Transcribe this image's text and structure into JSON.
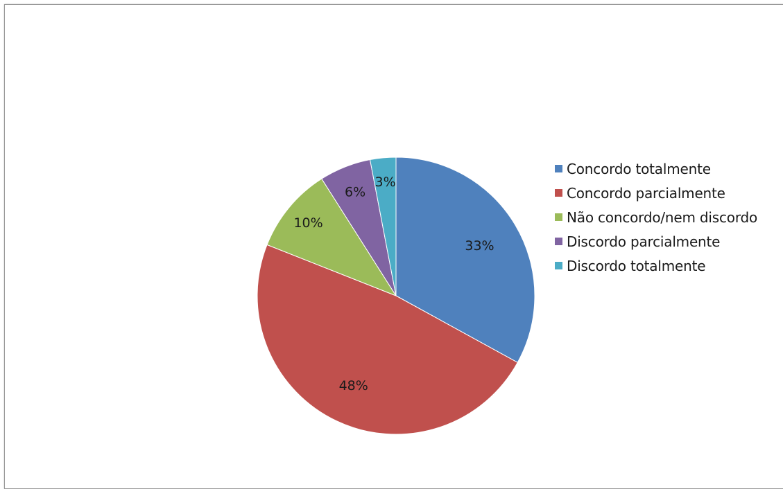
{
  "chart_data": {
    "type": "pie",
    "title": "",
    "categories": [
      "Concordo totalmente",
      "Concordo parcialmente",
      "Não concordo/nem discordo",
      "Discordo parcialmente",
      "Discordo totalmente"
    ],
    "values": [
      33,
      48,
      10,
      6,
      3
    ],
    "value_labels": [
      "33%",
      "48%",
      "10%",
      "6%",
      "3%"
    ],
    "colors": [
      "#4f81bd",
      "#c0504d",
      "#9bbb59",
      "#8064a2",
      "#4bacc6"
    ],
    "legend_position": "right",
    "start_angle": "12 o'clock, clockwise"
  },
  "legend": {
    "items": [
      {
        "label": "Concordo totalmente",
        "color": "#4f81bd"
      },
      {
        "label": "Concordo parcialmente",
        "color": "#c0504d"
      },
      {
        "label": "Não concordo/nem discordo",
        "color": "#9bbb59"
      },
      {
        "label": "Discordo parcialmente",
        "color": "#8064a2"
      },
      {
        "label": "Discordo totalmente",
        "color": "#4bacc6"
      }
    ]
  }
}
